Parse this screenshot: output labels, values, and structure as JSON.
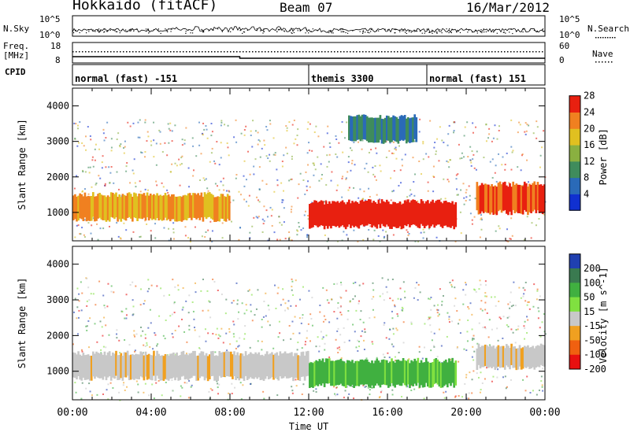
{
  "header": {
    "station": "Hokkaido (fitACF)",
    "beam": "Beam 07",
    "date": "16/Mar/2012"
  },
  "strips": {
    "nsky_label": "N.Sky",
    "nsky_ticks": [
      "10^5",
      "10^0"
    ],
    "nsearch_label": "N.Search",
    "nsearch_ticks": [
      "10^5",
      "10^0"
    ],
    "freq_label_line1": "Freq.",
    "freq_label_line2": "[MHz]",
    "freq_ticks": [
      "18",
      "8"
    ],
    "nave_label": "Nave",
    "nave_ticks": [
      "60",
      "0"
    ],
    "cpid_label": "CPID"
  },
  "cpid_segments": [
    {
      "name": "normal (fast) -151",
      "start_hour": 0
    },
    {
      "name": "themis 3300",
      "start_hour": 12
    },
    {
      "name": "normal (fast) 151",
      "start_hour": 18
    }
  ],
  "chart_data": [
    {
      "type": "heatmap",
      "panel": "power",
      "ylabel": "Slant Range [km]",
      "ylim": [
        200,
        4500
      ],
      "yticks": [
        1000,
        2000,
        3000,
        4000
      ],
      "xlim": [
        0,
        24
      ],
      "colorbar_label": "Power [dB]",
      "colorbar_ticks": [
        4,
        8,
        12,
        16,
        20,
        24,
        28
      ],
      "colorbar_colors": [
        "#1030d0",
        "#2a6ab8",
        "#3f8c5c",
        "#8ab040",
        "#e0c020",
        "#f08020",
        "#e82010"
      ],
      "bands": [
        {
          "t0": 0,
          "t1": 8,
          "r0": 800,
          "r1": 1500,
          "level": 20
        },
        {
          "t0": 12,
          "t1": 19.5,
          "r0": 600,
          "r1": 1300,
          "level": 28
        },
        {
          "t0": 20.5,
          "t1": 24,
          "r0": 1000,
          "r1": 1800,
          "level": 24
        },
        {
          "t0": 14,
          "t1": 17.5,
          "r0": 3000,
          "r1": 3700,
          "level": 8
        }
      ]
    },
    {
      "type": "heatmap",
      "panel": "velocity",
      "ylabel": "Slant Range [km]",
      "ylim": [
        200,
        4500
      ],
      "yticks": [
        1000,
        2000,
        3000,
        4000
      ],
      "xlim": [
        0,
        24
      ],
      "xticks": [
        "00:00",
        "04:00",
        "08:00",
        "12:00",
        "16:00",
        "20:00",
        "00:00"
      ],
      "xlabel": "Time UT",
      "colorbar_label": "Velocity [m s^-1]",
      "colorbar_ticks": [
        200,
        100,
        50,
        15,
        -15,
        -50,
        -100,
        -200
      ],
      "colorbar_colors": [
        "#2040b0",
        "#3a7a50",
        "#40b040",
        "#80e040",
        "#c8c8c8",
        "#f0a020",
        "#f06010",
        "#e81010"
      ],
      "bands": [
        {
          "t0": 0,
          "t1": 12,
          "r0": 800,
          "r1": 1500,
          "level": 0
        },
        {
          "t0": 12,
          "t1": 19.5,
          "r0": 600,
          "r1": 1300,
          "level": 30
        },
        {
          "t0": 20.5,
          "t1": 24,
          "r0": 1100,
          "r1": 1700,
          "level": 0
        }
      ]
    }
  ]
}
